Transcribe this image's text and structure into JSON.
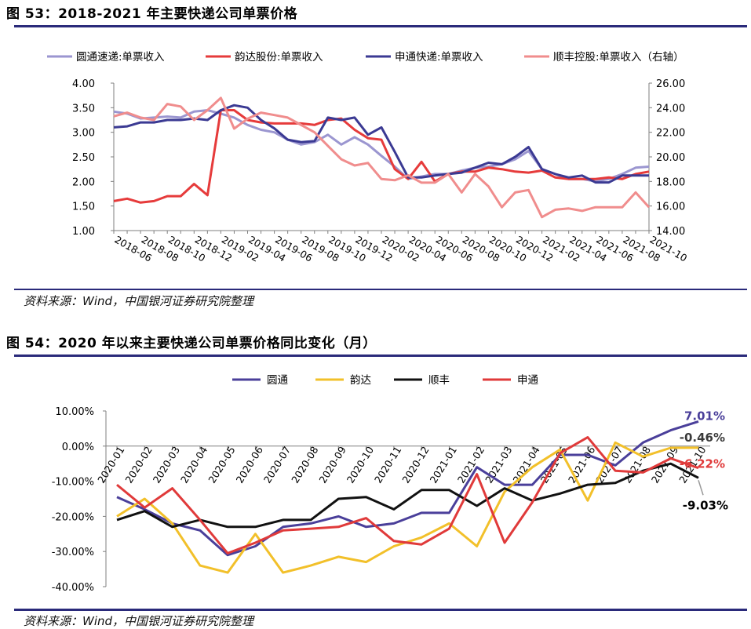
{
  "fig53": {
    "title": "图 53：2018-2021 年主要快递公司单票价格",
    "source": "资料来源：Wind，中国银河证券研究院整理"
  },
  "fig54": {
    "title": "图 54：2020 年以来主要快递公司单票价格同比变化（月）",
    "source": "资料来源：Wind，中国银河证券研究院整理"
  },
  "chart_data": [
    {
      "type": "line",
      "title": "2018-2021 年主要快递公司单票价格",
      "legend_position": "top",
      "x": [
        "2018-06",
        "2018-07",
        "2018-08",
        "2018-09",
        "2018-10",
        "2018-11",
        "2018-12",
        "2019-01",
        "2019-02",
        "2019-03",
        "2019-04",
        "2019-05",
        "2019-06",
        "2019-07",
        "2019-08",
        "2019-09",
        "2019-10",
        "2019-11",
        "2019-12",
        "2020-01",
        "2020-02",
        "2020-03",
        "2020-04",
        "2020-05",
        "2020-06",
        "2020-07",
        "2020-08",
        "2020-09",
        "2020-10",
        "2020-11",
        "2020-12",
        "2021-01",
        "2021-02",
        "2021-03",
        "2021-04",
        "2021-05",
        "2021-06",
        "2021-07",
        "2021-08",
        "2021-09",
        "2021-10"
      ],
      "x_tick_labels": [
        "2018-06",
        "2018-08",
        "2018-10",
        "2018-12",
        "2019-02",
        "2019-04",
        "2019-06",
        "2019-08",
        "2019-10",
        "2019-12",
        "2020-02",
        "2020-04",
        "2020-06",
        "2020-08",
        "2020-10",
        "2020-12",
        "2021-02",
        "2021-04",
        "2021-06",
        "2021-08",
        "2021-10"
      ],
      "y_left": {
        "min": 1.0,
        "max": 4.0,
        "ticks": [
          "1.00",
          "1.50",
          "2.00",
          "2.50",
          "3.00",
          "3.50",
          "4.00"
        ]
      },
      "y_right": {
        "min": 14.0,
        "max": 26.0,
        "ticks": [
          "14.00",
          "16.00",
          "18.00",
          "20.00",
          "22.00",
          "24.00",
          "26.00"
        ]
      },
      "series": [
        {
          "name": "圆通速递:单票收入",
          "color": "#9b96d0",
          "axis": "left",
          "values": [
            3.42,
            3.38,
            3.28,
            3.3,
            3.32,
            3.3,
            3.42,
            3.45,
            3.38,
            3.3,
            3.15,
            3.05,
            3.0,
            2.85,
            2.75,
            2.8,
            2.95,
            2.75,
            2.9,
            2.75,
            2.52,
            2.3,
            2.05,
            2.1,
            2.15,
            2.15,
            2.22,
            2.28,
            2.3,
            2.35,
            2.45,
            2.62,
            2.25,
            2.15,
            2.05,
            2.05,
            2.0,
            2.05,
            2.15,
            2.28,
            2.3
          ]
        },
        {
          "name": "韵达股份:单票收入",
          "color": "#e63b3b",
          "axis": "left",
          "values": [
            1.6,
            1.65,
            1.57,
            1.6,
            1.7,
            1.7,
            1.95,
            1.72,
            3.45,
            3.45,
            3.25,
            3.2,
            3.18,
            3.18,
            3.18,
            3.15,
            3.25,
            3.28,
            3.05,
            2.88,
            2.85,
            2.25,
            2.05,
            2.4,
            2.0,
            2.15,
            2.2,
            2.2,
            2.28,
            2.25,
            2.2,
            2.18,
            2.22,
            2.08,
            2.05,
            2.05,
            2.05,
            2.08,
            2.05,
            2.15,
            2.2
          ]
        },
        {
          "name": "申通快递:单票收入",
          "color": "#3b3a93",
          "axis": "left",
          "values": [
            3.1,
            3.12,
            3.2,
            3.2,
            3.25,
            3.25,
            3.28,
            3.25,
            3.45,
            3.55,
            3.5,
            3.25,
            3.08,
            2.85,
            2.8,
            2.82,
            3.3,
            3.25,
            3.3,
            2.95,
            3.1,
            2.6,
            2.08,
            2.08,
            2.12,
            2.15,
            2.18,
            2.28,
            2.38,
            2.35,
            2.5,
            2.7,
            2.25,
            2.15,
            2.08,
            2.12,
            1.98,
            1.98,
            2.12,
            2.12,
            2.12
          ]
        },
        {
          "name": "顺丰控股:单票收入（右轴）",
          "color": "#f08d8d",
          "axis": "right",
          "values": [
            23.3,
            23.6,
            23.2,
            23.0,
            24.3,
            24.1,
            23.0,
            23.8,
            24.8,
            22.3,
            23.1,
            23.6,
            23.4,
            23.2,
            22.6,
            22.0,
            20.9,
            19.8,
            19.3,
            19.5,
            18.2,
            18.1,
            18.5,
            17.9,
            17.9,
            18.6,
            17.1,
            18.6,
            17.6,
            15.9,
            17.1,
            17.3,
            15.1,
            15.7,
            15.8,
            15.6,
            15.9,
            15.9,
            15.9,
            17.1,
            15.9
          ]
        }
      ]
    },
    {
      "type": "line",
      "title": "2020 年以来主要快递公司单票价格同比变化（月）",
      "legend_position": "top",
      "x": [
        "2020-01",
        "2020-02",
        "2020-03",
        "2020-04",
        "2020-05",
        "2020-06",
        "2020-07",
        "2020-08",
        "2020-09",
        "2020-10",
        "2020-11",
        "2020-12",
        "2021-01",
        "2021-02",
        "2021-03",
        "2021-04",
        "2021-05",
        "2021-06",
        "2021-07",
        "2021-08",
        "2021-09",
        "2021-10"
      ],
      "ylim": [
        -40,
        10
      ],
      "y_ticks": [
        "10.00%",
        "0.00%",
        "-10.00%",
        "-20.00%",
        "-30.00%",
        "-40.00%"
      ],
      "series": [
        {
          "name": "圆通",
          "color": "#4a3f9a",
          "values": [
            -14.5,
            -18.0,
            -22.0,
            -24.0,
            -31.0,
            -28.5,
            -23.0,
            -22.0,
            -20.0,
            -23.0,
            -22.0,
            -19.0,
            -19.0,
            -6.0,
            -11.0,
            -11.0,
            -2.5,
            -2.5,
            -5.5,
            1.0,
            4.5,
            7.01
          ]
        },
        {
          "name": "韵达",
          "color": "#f2c02a",
          "values": [
            -20.0,
            -15.0,
            -22.0,
            -34.0,
            -36.0,
            -25.0,
            -36.0,
            -34.0,
            -31.5,
            -33.0,
            -28.5,
            -26.0,
            -22.0,
            -28.5,
            -13.0,
            -6.0,
            -1.0,
            -15.5,
            1.0,
            -3.0,
            -0.5,
            -0.46
          ]
        },
        {
          "name": "顺丰",
          "color": "#111111",
          "values": [
            -21.0,
            -18.5,
            -23.0,
            -21.0,
            -23.0,
            -23.0,
            -21.0,
            -21.0,
            -15.0,
            -14.5,
            -18.0,
            -12.5,
            -12.5,
            -17.0,
            -12.0,
            -15.5,
            -13.5,
            -11.0,
            -10.5,
            -7.0,
            -5.0,
            -9.03
          ]
        },
        {
          "name": "申通",
          "color": "#e03a3a",
          "values": [
            -11.0,
            -17.5,
            -12.0,
            -21.0,
            -30.5,
            -27.5,
            -24.0,
            -23.5,
            -23.0,
            -20.5,
            -27.0,
            -28.0,
            -23.5,
            -8.0,
            -27.5,
            -16.0,
            -2.0,
            2.5,
            -7.0,
            -7.5,
            -3.5,
            -6.22
          ]
        }
      ],
      "end_labels": [
        "7.01%",
        "-0.46%",
        "-6.22%",
        "-9.03%"
      ]
    }
  ]
}
